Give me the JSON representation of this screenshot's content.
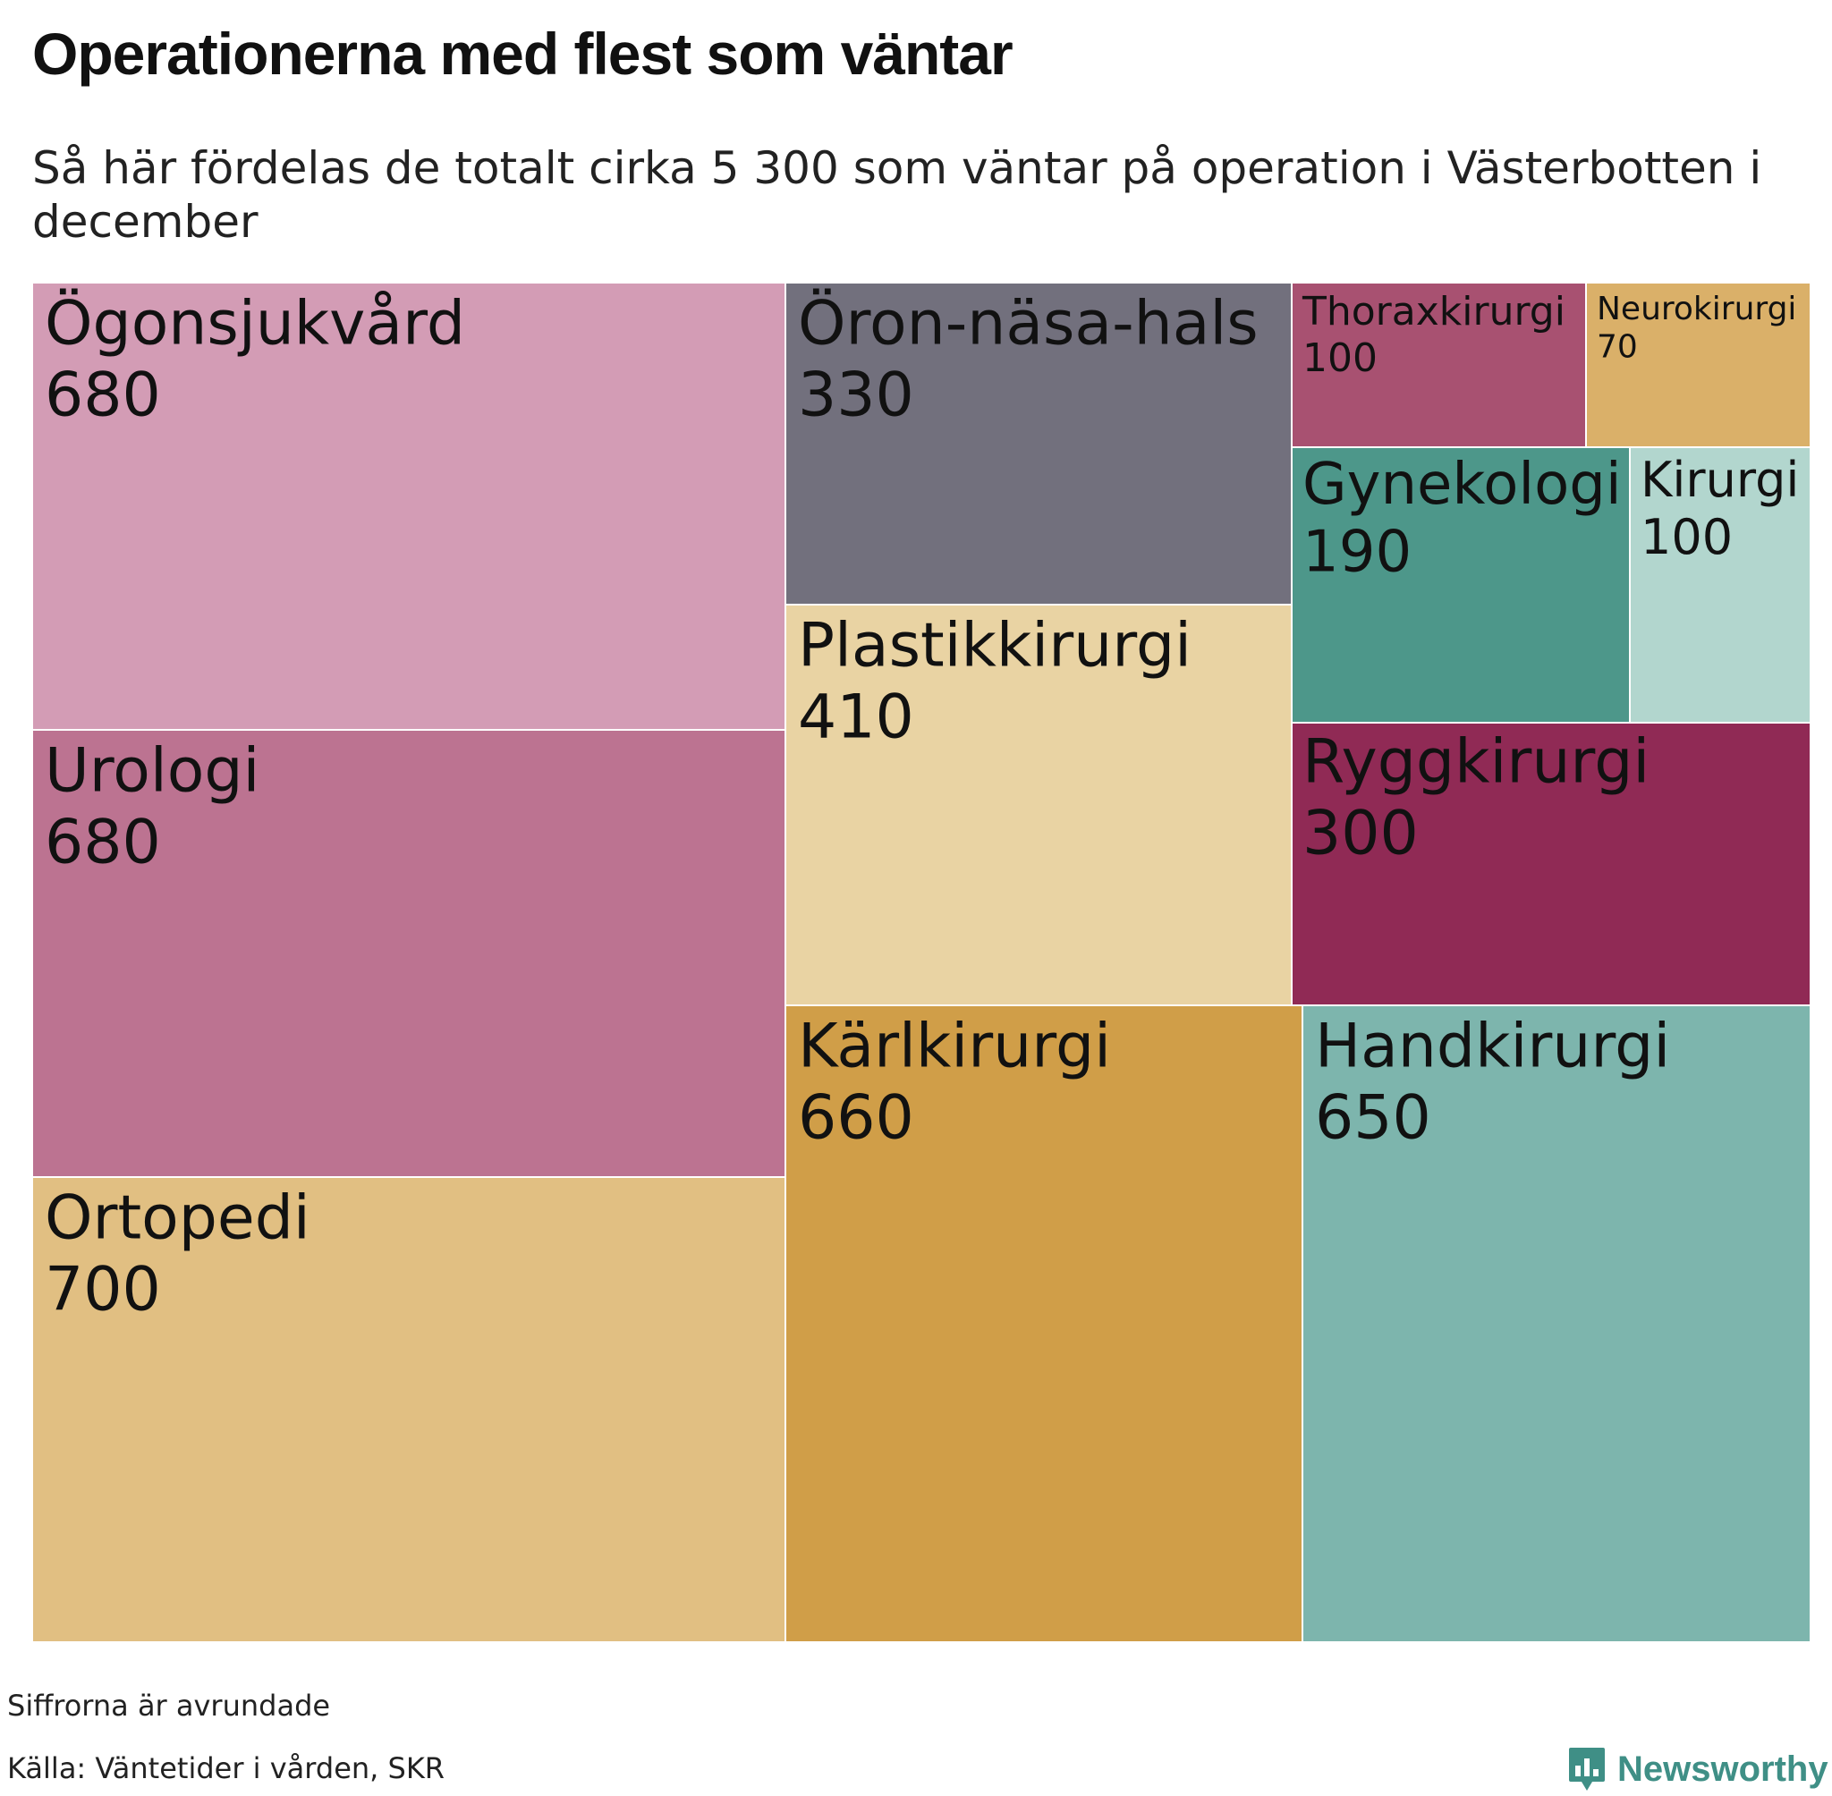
{
  "title": "Operationerna med flest som väntar",
  "subtitle": "Så här fördelas de totalt cirka 5 300 som väntar på operation i Västerbotten i december",
  "footnote": "Siffrorna är avrundade",
  "source": "Källa: Väntetider i vården, SKR",
  "logo": {
    "text": "Newsworthy",
    "icon": "newsworthy-chart-bubble-icon",
    "color": "#3f8f86"
  },
  "chart_data": {
    "type": "treemap",
    "items": [
      {
        "label": "Ögonsjukvård",
        "value": 680,
        "color": "#d39cb5"
      },
      {
        "label": "Urologi",
        "value": 680,
        "color": "#bc7391"
      },
      {
        "label": "Ortopedi",
        "value": 700,
        "color": "#e1bf82"
      },
      {
        "label": "Öron-näsa-hals",
        "value": 330,
        "color": "#72707d"
      },
      {
        "label": "Plastikkirurgi",
        "value": 410,
        "color": "#e9d3a3"
      },
      {
        "label": "Kärlkirurgi",
        "value": 660,
        "color": "#d09e48"
      },
      {
        "label": "Thoraxkirurgi",
        "value": 100,
        "color": "#a85171"
      },
      {
        "label": "Neurokirurgi",
        "value": 70,
        "color": "#dab069"
      },
      {
        "label": "Gynekologi",
        "value": 190,
        "color": "#4d978a"
      },
      {
        "label": "Kirurgi",
        "value": 100,
        "color": "#b2d6ce"
      },
      {
        "label": "Ryggkirurgi",
        "value": 300,
        "color": "#902a55"
      },
      {
        "label": "Handkirurgi",
        "value": 650,
        "color": "#7db5ad"
      }
    ]
  }
}
